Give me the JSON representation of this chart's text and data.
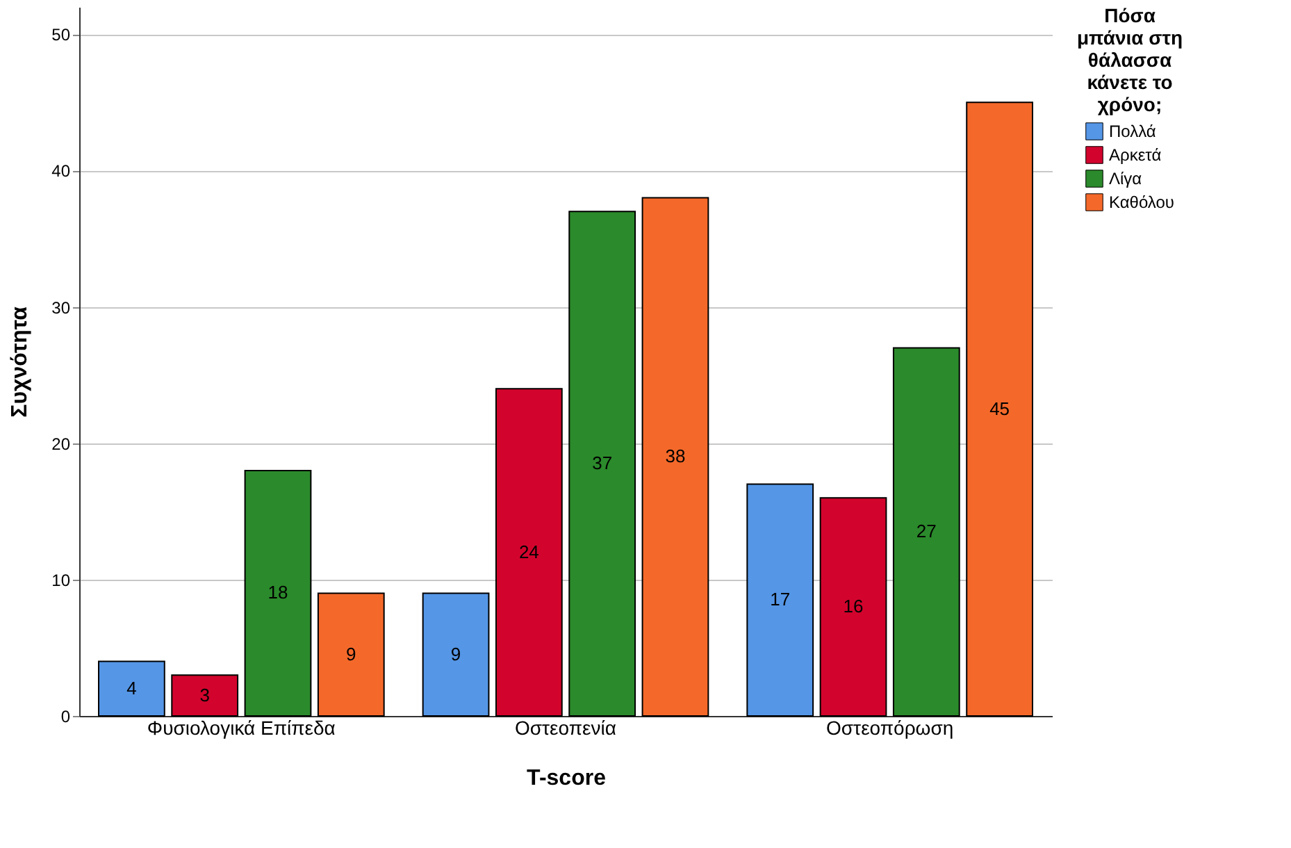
{
  "chart_data": {
    "type": "bar",
    "xlabel": "T-score",
    "ylabel": "Συχνότητα",
    "legend_title": "Πόσα μπάνια στη θάλασσα κάνετε το χρόνο;",
    "categories": [
      "Φυσιολογικά Επίπεδα",
      "Οστεοπενία",
      "Οστεοπόρωση"
    ],
    "series": [
      {
        "name": "Πολλά",
        "color": "#5596e6",
        "values": [
          4,
          9,
          17
        ]
      },
      {
        "name": "Αρκετά",
        "color": "#d2042d",
        "values": [
          3,
          24,
          16
        ]
      },
      {
        "name": "Λίγα",
        "color": "#2b8a2b",
        "values": [
          18,
          37,
          27
        ]
      },
      {
        "name": "Καθόλου",
        "color": "#f4692a",
        "values": [
          9,
          38,
          45
        ]
      }
    ],
    "ylim": [
      0,
      52
    ],
    "yticks": [
      0,
      10,
      20,
      30,
      40,
      50
    ],
    "grid": "y",
    "legend": "right",
    "data_labels": true
  }
}
